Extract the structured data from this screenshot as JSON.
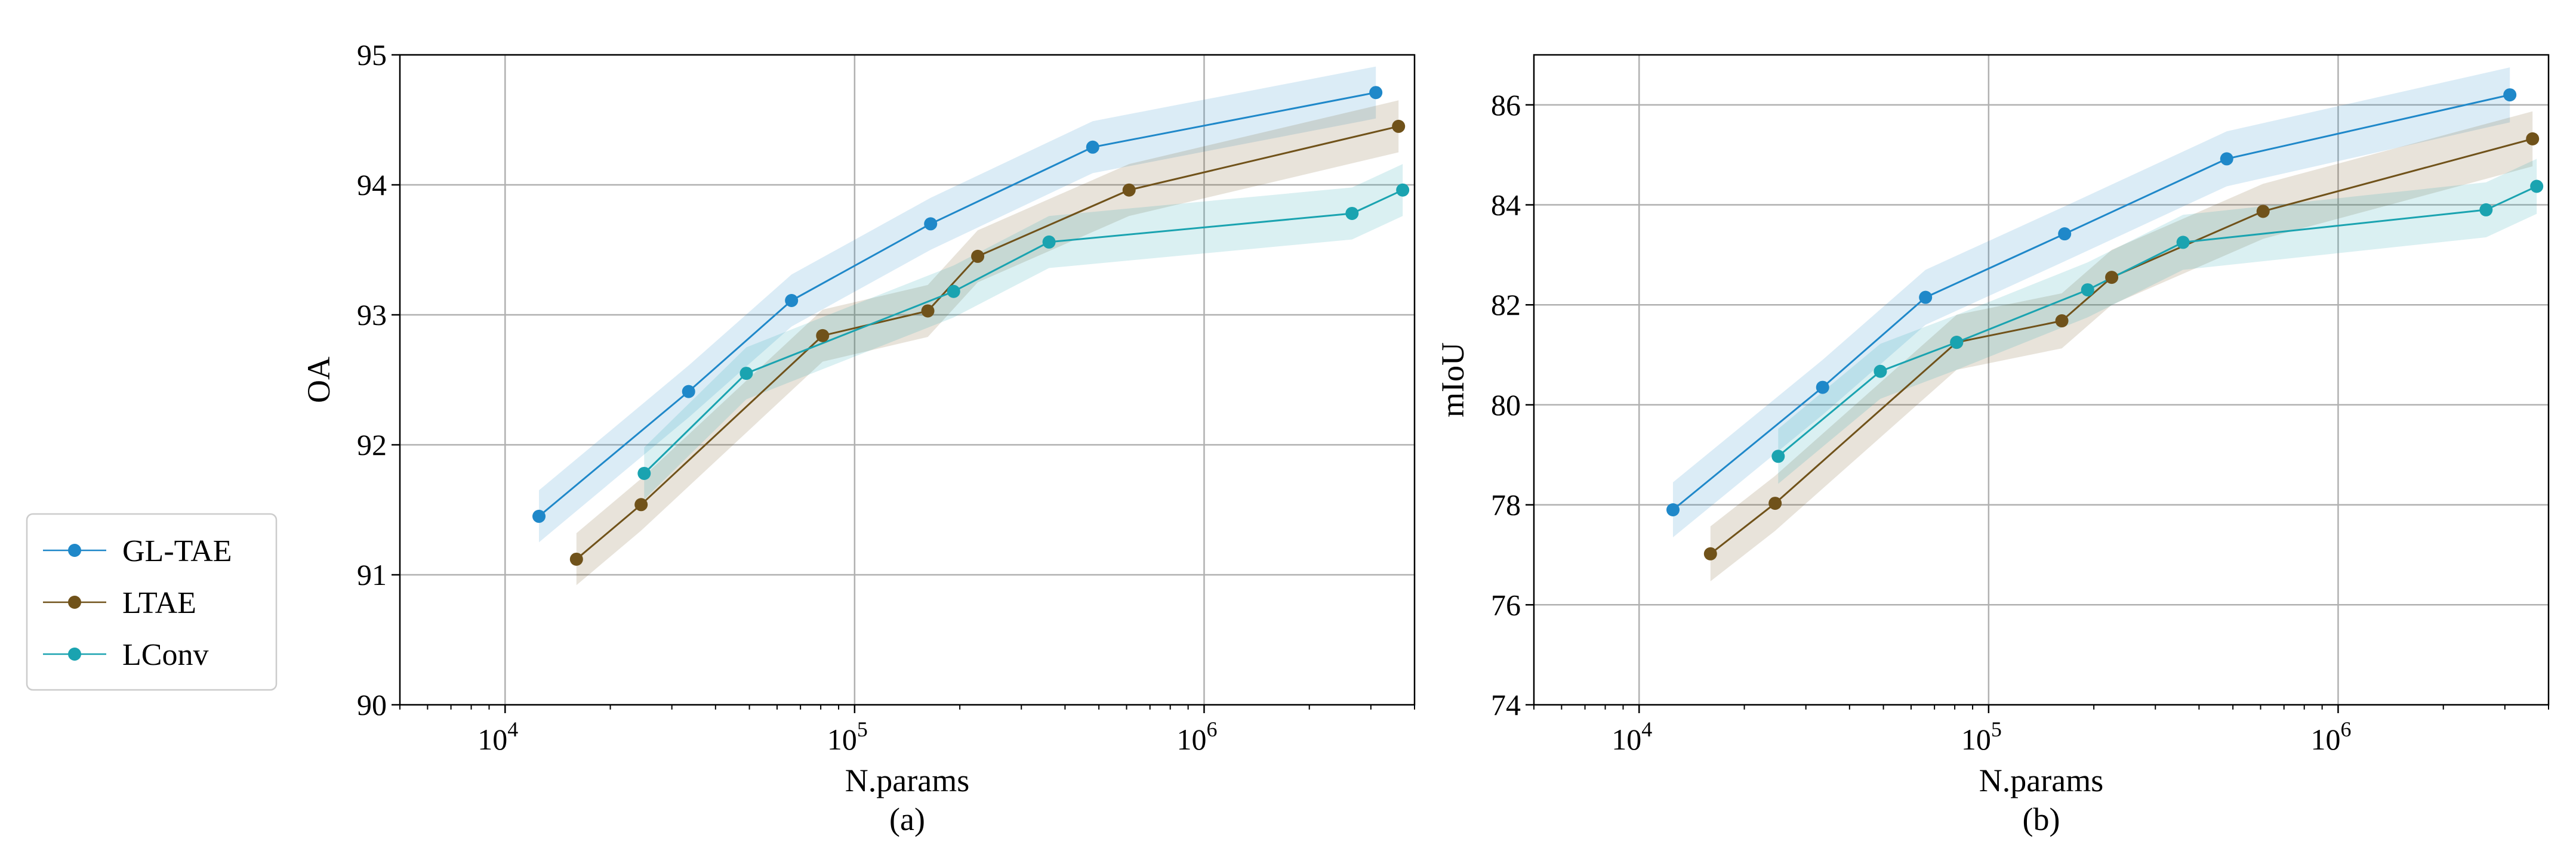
{
  "colors": {
    "GL-TAE": "#1f88c9",
    "LTAE": "#70521a",
    "LConv": "#1aa3b0",
    "grid": "#b0b0b0",
    "axis": "#000000"
  },
  "legend": {
    "entries": [
      "GL-TAE",
      "LTAE",
      "LConv"
    ]
  },
  "chart_data": [
    {
      "type": "line",
      "caption": "(a)",
      "xlabel": "N.params",
      "ylabel": "OA",
      "xscale": "log",
      "xlim": [
        5000,
        4000000
      ],
      "ylim": [
        90,
        95
      ],
      "yticks": [
        90,
        91,
        92,
        93,
        94,
        95
      ],
      "xticks": [
        {
          "value": 10000,
          "base": "10",
          "exp": "4"
        },
        {
          "value": 100000,
          "base": "10",
          "exp": "5"
        },
        {
          "value": 1000000,
          "base": "10",
          "exp": "6"
        }
      ],
      "grid": true,
      "band_halfwidth": 0.2,
      "series": [
        {
          "name": "GL-TAE",
          "x": [
            12500,
            33500,
            66000,
            165000,
            480000,
            3100000
          ],
          "y": [
            91.45,
            92.41,
            93.11,
            93.7,
            94.29,
            94.71
          ]
        },
        {
          "name": "LTAE",
          "x": [
            16000,
            24500,
            81000,
            162000,
            225000,
            610000,
            3600000
          ],
          "y": [
            91.12,
            91.54,
            92.84,
            93.03,
            93.45,
            93.96,
            94.45
          ]
        },
        {
          "name": "LConv",
          "x": [
            25000,
            49000,
            192000,
            360000,
            2650000,
            3700000
          ],
          "y": [
            91.78,
            92.55,
            93.18,
            93.56,
            93.78,
            93.96
          ]
        }
      ]
    },
    {
      "type": "line",
      "caption": "(b)",
      "xlabel": "N.params",
      "ylabel": "mIoU",
      "xscale": "log",
      "xlim": [
        5000,
        4000000
      ],
      "ylim": [
        74,
        87
      ],
      "yticks": [
        74,
        76,
        78,
        80,
        82,
        84,
        86
      ],
      "xticks": [
        {
          "value": 10000,
          "base": "10",
          "exp": "4"
        },
        {
          "value": 100000,
          "base": "10",
          "exp": "5"
        },
        {
          "value": 1000000,
          "base": "10",
          "exp": "6"
        }
      ],
      "grid": true,
      "band_halfwidth": 0.55,
      "series": [
        {
          "name": "GL-TAE",
          "x": [
            12500,
            33500,
            66000,
            165000,
            480000,
            3100000
          ],
          "y": [
            77.9,
            80.35,
            82.15,
            83.42,
            84.92,
            86.2
          ]
        },
        {
          "name": "LTAE",
          "x": [
            16000,
            24500,
            81000,
            162000,
            225000,
            610000,
            3600000
          ],
          "y": [
            77.02,
            78.03,
            81.25,
            81.68,
            82.55,
            83.87,
            85.32
          ]
        },
        {
          "name": "LConv",
          "x": [
            25000,
            49000,
            81000,
            192000,
            360000,
            2650000,
            3700000
          ],
          "y": [
            78.97,
            80.67,
            81.25,
            82.3,
            83.25,
            83.9,
            84.37
          ]
        }
      ]
    }
  ]
}
